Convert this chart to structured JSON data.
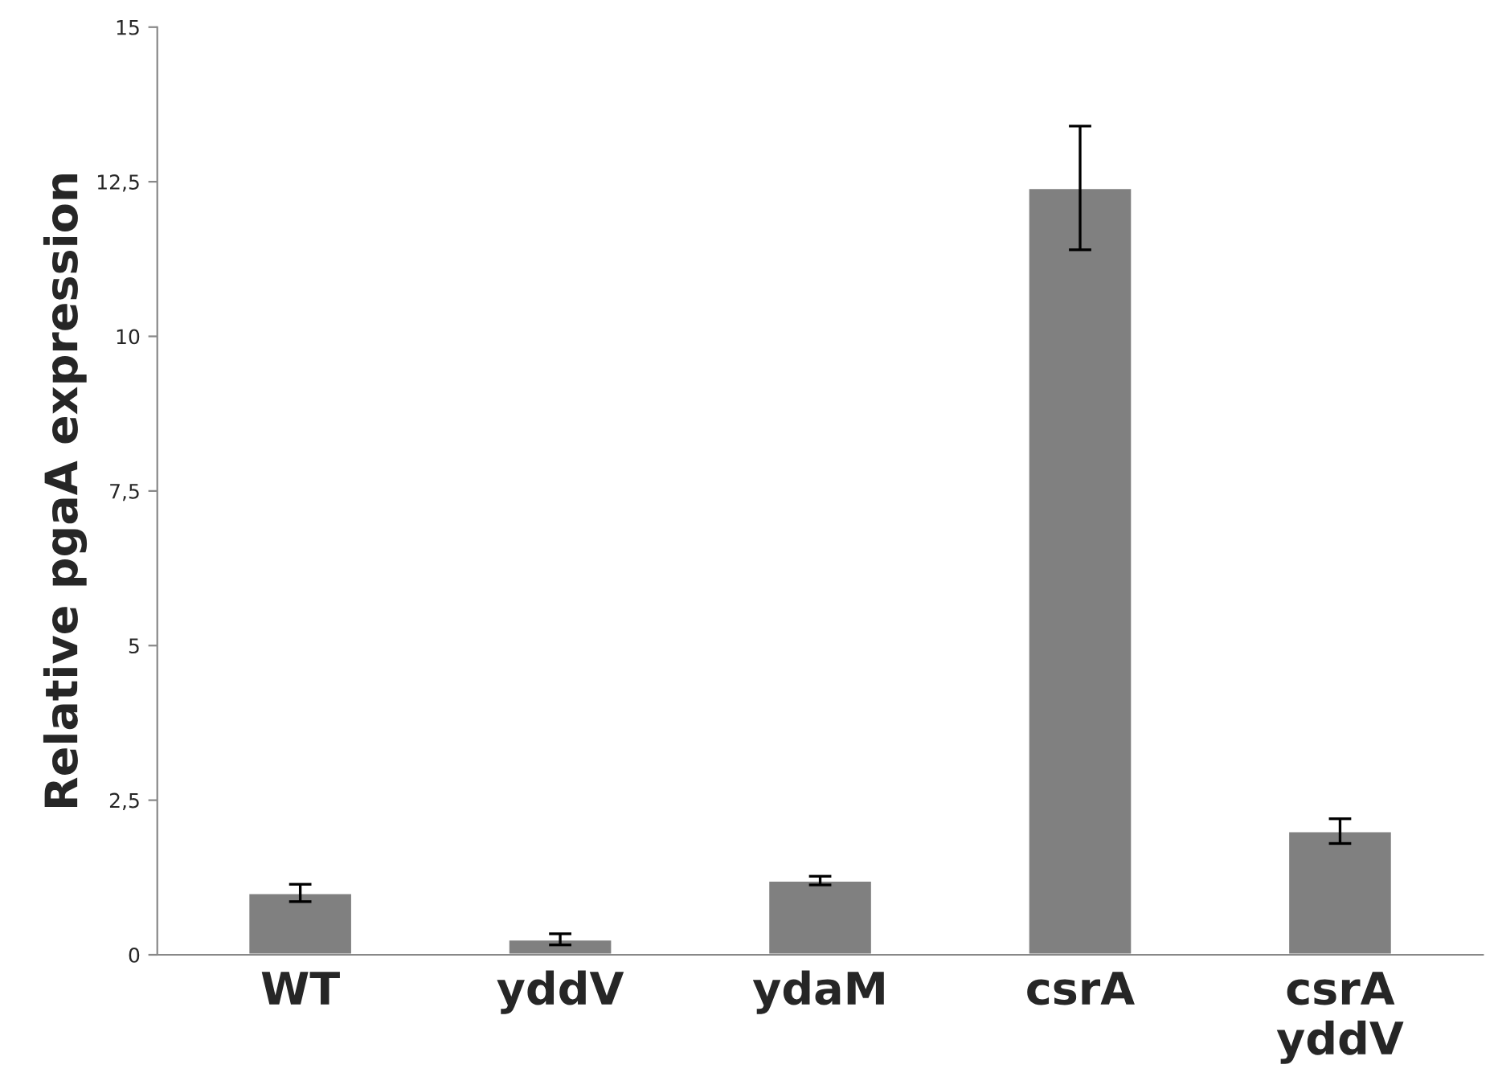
{
  "chart_data": {
    "type": "bar",
    "ylabel": "Relative pgaA expression",
    "categories": [
      "WT",
      "yddV",
      "ydaM",
      "csrA",
      "csrA\nyddV"
    ],
    "values": [
      1.0,
      0.25,
      1.2,
      12.4,
      2.0
    ],
    "errors": [
      0.14,
      0.09,
      0.07,
      1.0,
      0.2
    ],
    "color": "#808080",
    "ylim": [
      0,
      15
    ],
    "yticks": [
      0,
      {
        "value": 2.5,
        "label": "2,5"
      },
      5,
      {
        "value": 7.5,
        "label": "7,5"
      },
      10,
      {
        "value": 12.5,
        "label": "12,5"
      },
      15
    ],
    "grid": false,
    "legend": false
  }
}
